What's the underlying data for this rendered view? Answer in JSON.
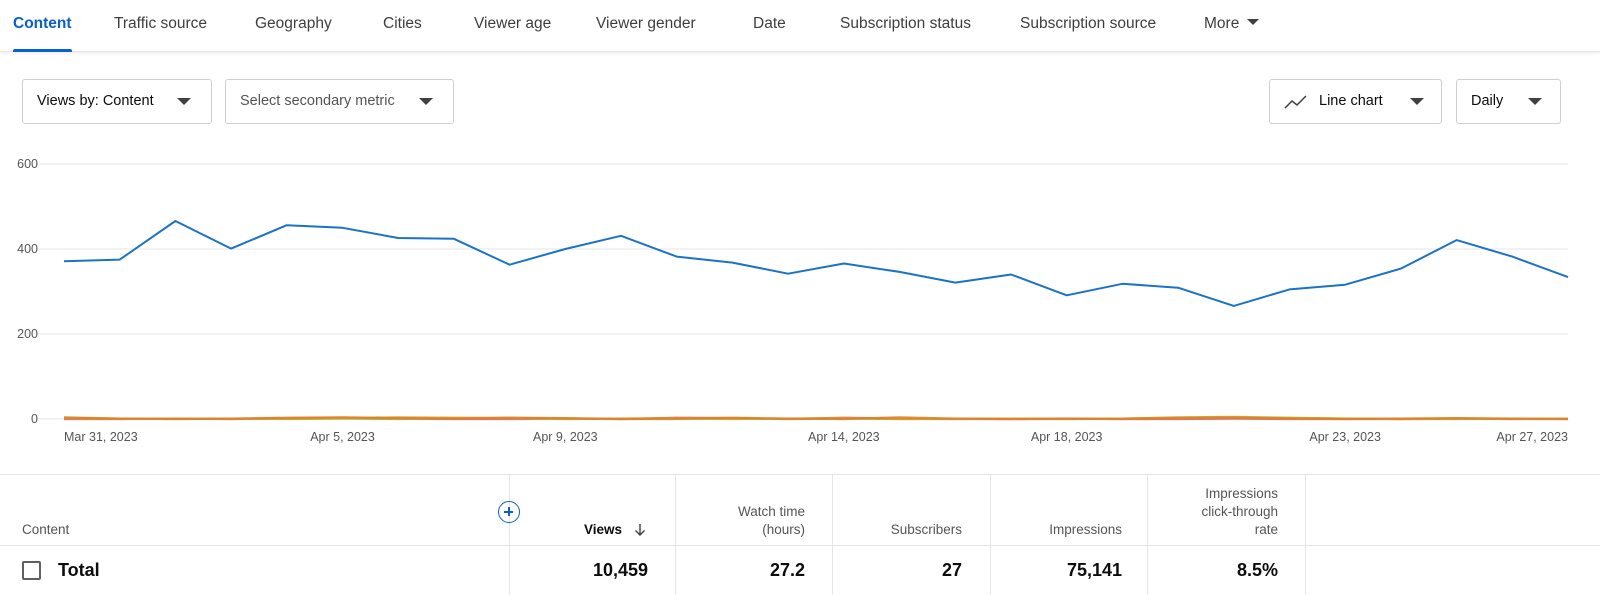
{
  "tabs": [
    {
      "label": "Content",
      "active": true
    },
    {
      "label": "Traffic source"
    },
    {
      "label": "Geography"
    },
    {
      "label": "Cities"
    },
    {
      "label": "Viewer age"
    },
    {
      "label": "Viewer gender"
    },
    {
      "label": "Date"
    },
    {
      "label": "Subscription status"
    },
    {
      "label": "Subscription source"
    },
    {
      "label": "More"
    }
  ],
  "controls": {
    "primary_metric": "Views by: Content",
    "secondary_metric": "Select secondary metric",
    "chart_type": "Line chart",
    "interval": "Daily"
  },
  "chart_data": {
    "type": "line",
    "ylim": [
      0,
      600
    ],
    "yticks": [
      "600",
      "400",
      "200",
      "0"
    ],
    "xticks": [
      "Mar 31, 2023",
      "Apr 5, 2023",
      "Apr 9, 2023",
      "Apr 14, 2023",
      "Apr 18, 2023",
      "Apr 23, 2023",
      "Apr 27, 2023"
    ],
    "grid": true,
    "colors": {
      "main": "#1a73c7",
      "minor": [
        "#e37b34",
        "#d4a01b",
        "#9cb82a",
        "#e05757"
      ]
    },
    "series": [
      {
        "values": [
          371,
          375,
          466,
          401,
          456,
          450,
          426,
          424,
          363,
          400,
          431,
          382,
          368,
          342,
          366,
          346,
          321,
          340,
          291,
          318,
          309,
          266,
          305,
          316,
          354,
          421,
          382,
          334
        ]
      },
      {
        "values": [
          3,
          1,
          0,
          1,
          3,
          4,
          2,
          1,
          3,
          2,
          0,
          1,
          3,
          1,
          0,
          4,
          1,
          0,
          1,
          0,
          2,
          3,
          1,
          0,
          1,
          2,
          1,
          0
        ]
      },
      {
        "values": [
          2,
          0,
          1,
          0,
          1,
          2,
          4,
          3,
          2,
          0,
          1,
          2,
          0,
          1,
          2,
          0,
          1,
          0,
          0,
          1,
          3,
          4,
          2,
          1,
          0,
          1,
          0,
          1
        ]
      },
      {
        "values": [
          4,
          1,
          0,
          1,
          0,
          1,
          0,
          2,
          3,
          1,
          0,
          0,
          1,
          0,
          1,
          0,
          0,
          1,
          0,
          1,
          4,
          5,
          3,
          1,
          0,
          0,
          1,
          0
        ]
      },
      {
        "values": [
          0,
          0,
          1,
          0,
          2,
          3,
          1,
          0,
          0,
          1,
          0,
          3,
          2,
          0,
          3,
          1,
          0,
          0,
          1,
          0,
          0,
          1,
          0,
          0,
          0,
          1,
          0,
          0
        ]
      }
    ]
  },
  "table": {
    "headers": {
      "content": "Content",
      "views": "Views",
      "watch_time": [
        "Watch time",
        "(hours)"
      ],
      "subscribers": "Subscribers",
      "impressions": "Impressions",
      "ctr": [
        "Impressions",
        "click-through",
        "rate"
      ]
    },
    "total": {
      "label": "Total",
      "views": "10,459",
      "watch_time": "27.2",
      "subscribers": "27",
      "impressions": "75,141",
      "ctr": "8.5%"
    }
  }
}
